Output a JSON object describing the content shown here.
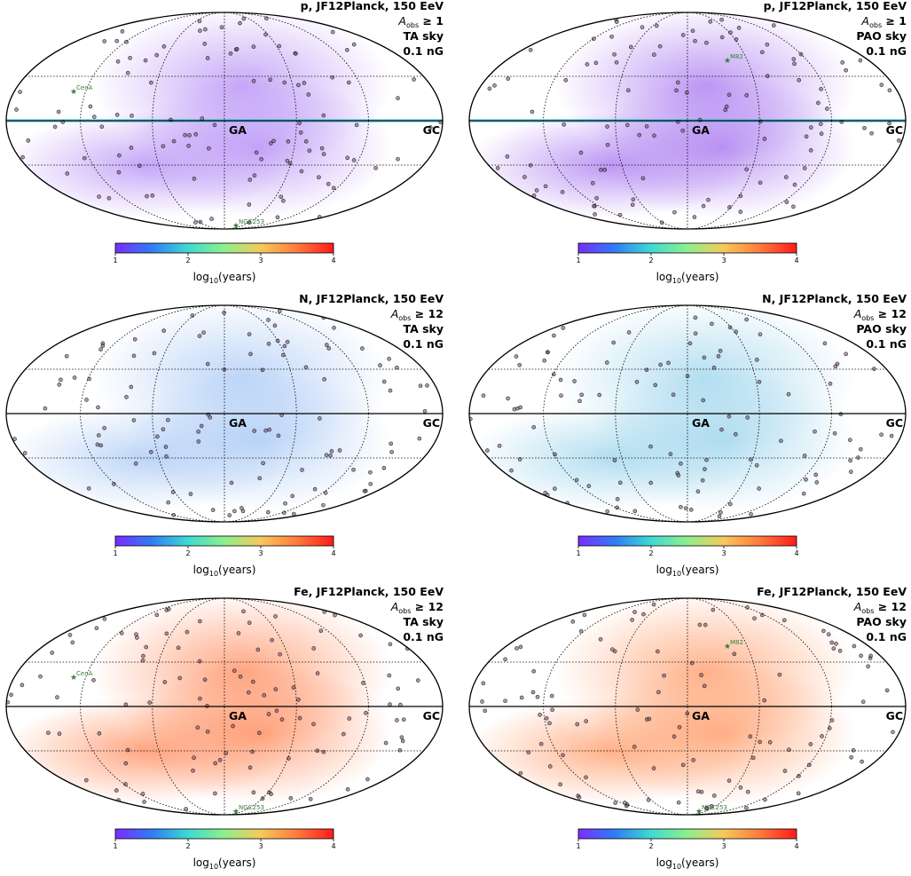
{
  "colorbar": {
    "ticks": [
      "1",
      "2",
      "3",
      "4"
    ],
    "label_main": "log",
    "label_sub": "10",
    "label_rest": "(years)",
    "stops": [
      "#7b2cff",
      "#2f7cf6",
      "#3fd9d2",
      "#8ef08a",
      "#f6c85c",
      "#ff7a3c",
      "#ff1a1a"
    ]
  },
  "labels": {
    "ga": "GA",
    "gc": "GC"
  },
  "chart_data": [
    {
      "type": "heatmap",
      "title_line1": "p, JF12Planck, 150 EeV",
      "aobs_value": "1",
      "sky": "TA sky",
      "field": "0.1 nG",
      "projection": "mollweide",
      "fill_color": "#b48cf5",
      "sources": [
        {
          "name": "CenA"
        },
        {
          "name": "NGC253"
        }
      ],
      "colorbar_range": [
        1,
        4
      ]
    },
    {
      "type": "heatmap",
      "title_line1": "p, JF12Planck, 150 EeV",
      "aobs_value": "1",
      "sky": "PAO sky",
      "field": "0.1 nG",
      "projection": "mollweide",
      "fill_color": "#a878f0",
      "sources": [
        {
          "name": "M82"
        }
      ],
      "colorbar_range": [
        1,
        4
      ]
    },
    {
      "type": "heatmap",
      "title_line1": "N, JF12Planck, 150 EeV",
      "aobs_value": "12",
      "sky": "TA sky",
      "field": "0.1 nG",
      "projection": "mollweide",
      "fill_color": "#a8c8f5",
      "sources": [],
      "colorbar_range": [
        1,
        4
      ]
    },
    {
      "type": "heatmap",
      "title_line1": "N, JF12Planck, 150 EeV",
      "aobs_value": "12",
      "sky": "PAO sky",
      "field": "0.1 nG",
      "projection": "mollweide",
      "fill_color": "#9cd4ec",
      "sources": [],
      "colorbar_range": [
        1,
        4
      ]
    },
    {
      "type": "heatmap",
      "title_line1": "Fe, JF12Planck, 150 EeV",
      "aobs_value": "12",
      "sky": "TA sky",
      "field": "0.1 nG",
      "projection": "mollweide",
      "fill_color": "#ff8a5a",
      "sources": [
        {
          "name": "CenA"
        },
        {
          "name": "NGC253"
        }
      ],
      "colorbar_range": [
        1,
        4
      ]
    },
    {
      "type": "heatmap",
      "title_line1": "Fe, JF12Planck, 150 EeV",
      "aobs_value": "12",
      "sky": "PAO sky",
      "field": "0.1 nG",
      "projection": "mollweide",
      "fill_color": "#ff9a66",
      "sources": [
        {
          "name": "M82"
        },
        {
          "name": "NGC253"
        }
      ],
      "colorbar_range": [
        1,
        4
      ]
    }
  ]
}
